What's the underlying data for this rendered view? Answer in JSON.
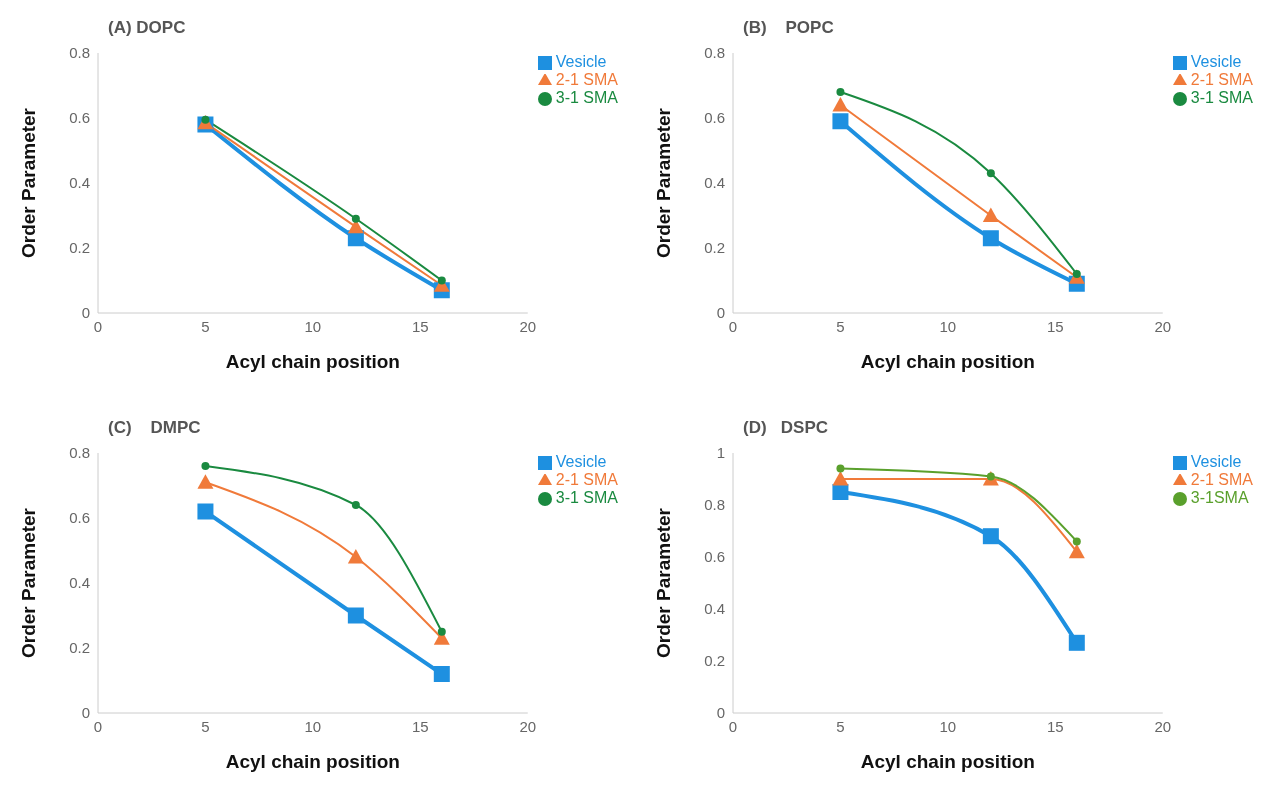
{
  "chart_data": [
    {
      "type": "line",
      "title": "(A) DOPC",
      "xlabel": "Acyl chain position",
      "ylabel": "Order Parameter",
      "x": [
        5,
        12,
        16
      ],
      "xlim": [
        0,
        20
      ],
      "xticks": [
        0,
        5,
        10,
        15,
        20
      ],
      "ylim": [
        0,
        0.8
      ],
      "yticks": [
        0,
        0.2,
        0.4,
        0.6,
        0.8
      ],
      "grid": false,
      "legend": "top right",
      "series": [
        {
          "name": "Vesicle",
          "color": "#1e90e0",
          "marker": "square",
          "values": [
            0.58,
            0.23,
            0.07
          ]
        },
        {
          "name": "2-1 SMA",
          "color": "#f07a3a",
          "marker": "triangle",
          "values": [
            0.585,
            0.265,
            0.085
          ]
        },
        {
          "name": "3-1 SMA",
          "color": "#1a8a40",
          "marker": "circle",
          "values": [
            0.595,
            0.29,
            0.1
          ]
        }
      ]
    },
    {
      "type": "line",
      "title": "(B)    POPC",
      "xlabel": "Acyl chain position",
      "ylabel": "Order Parameter",
      "x": [
        5,
        12,
        16
      ],
      "xlim": [
        0,
        20
      ],
      "xticks": [
        0,
        5,
        10,
        15,
        20
      ],
      "ylim": [
        0,
        0.8
      ],
      "yticks": [
        0,
        0.2,
        0.4,
        0.6,
        0.8
      ],
      "grid": false,
      "legend": "top right",
      "series": [
        {
          "name": "Vesicle",
          "color": "#1e90e0",
          "marker": "square",
          "values": [
            0.59,
            0.23,
            0.09
          ]
        },
        {
          "name": "2-1 SMA",
          "color": "#f07a3a",
          "marker": "triangle",
          "values": [
            0.64,
            0.3,
            0.11
          ]
        },
        {
          "name": "3-1 SMA",
          "color": "#1a8a40",
          "marker": "circle",
          "values": [
            0.68,
            0.43,
            0.12
          ]
        }
      ]
    },
    {
      "type": "line",
      "title": "(C)    DMPC",
      "xlabel": "Acyl chain position",
      "ylabel": "Order Parameter",
      "x": [
        5,
        12,
        16
      ],
      "xlim": [
        0,
        20
      ],
      "xticks": [
        0,
        5,
        10,
        15,
        20
      ],
      "ylim": [
        0,
        0.8
      ],
      "yticks": [
        0,
        0.2,
        0.4,
        0.6,
        0.8
      ],
      "grid": false,
      "legend": "top right",
      "series": [
        {
          "name": "Vesicle",
          "color": "#1e90e0",
          "marker": "square",
          "values": [
            0.62,
            0.3,
            0.12
          ]
        },
        {
          "name": "2-1 SMA",
          "color": "#f07a3a",
          "marker": "triangle",
          "values": [
            0.71,
            0.48,
            0.23
          ]
        },
        {
          "name": "3-1 SMA",
          "color": "#1a8a40",
          "marker": "circle",
          "values": [
            0.76,
            0.64,
            0.25
          ]
        }
      ]
    },
    {
      "type": "line",
      "title": "(D)   DSPC",
      "xlabel": "Acyl chain position",
      "ylabel": "Order Parameter",
      "x": [
        5,
        12,
        16
      ],
      "xlim": [
        0,
        20
      ],
      "xticks": [
        0,
        5,
        10,
        15,
        20
      ],
      "ylim": [
        0,
        1
      ],
      "yticks": [
        0,
        0.2,
        0.4,
        0.6,
        0.8,
        1
      ],
      "grid": false,
      "legend": "top right",
      "series": [
        {
          "name": "Vesicle",
          "color": "#1e90e0",
          "marker": "square",
          "values": [
            0.85,
            0.68,
            0.27
          ]
        },
        {
          "name": "2-1 SMA",
          "color": "#f07a3a",
          "marker": "triangle",
          "values": [
            0.9,
            0.9,
            0.62
          ]
        },
        {
          "name": "3-1SMA",
          "color": "#5aa02c",
          "marker": "circle",
          "values": [
            0.94,
            0.91,
            0.66
          ]
        }
      ]
    }
  ]
}
